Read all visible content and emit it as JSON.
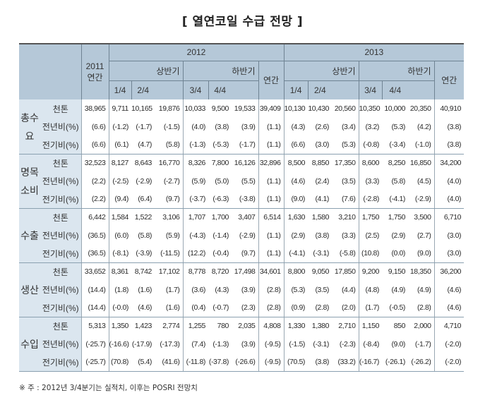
{
  "title": "[ 열연코일 수급 전망 ]",
  "header": {
    "y2011_line1": "2011",
    "y2011_line2": "연간",
    "year2012": "2012",
    "year2013": "2013",
    "h1": "상반기",
    "h2": "하반기",
    "annual": "연간",
    "q1": "1/4",
    "q2": "2/4",
    "q3": "3/4",
    "q4": "4/4"
  },
  "categories": [
    {
      "name": "총수요",
      "rows": [
        {
          "label": "천톤",
          "values": [
            "38,965",
            "9,711",
            "10,165",
            "19,876",
            "10,033",
            "9,500",
            "19,533",
            "39,409",
            "10,130",
            "10,430",
            "20,560",
            "10,350",
            "10,000",
            "20,350",
            "40,910"
          ]
        },
        {
          "label": "전년비(%)",
          "values": [
            "(6.6)",
            "(-1.2)",
            "(-1.7)",
            "(-1.5)",
            "(4.0)",
            "(3.8)",
            "(3.9)",
            "(1.1)",
            "(4.3)",
            "(2.6)",
            "(3.4)",
            "(3.2)",
            "(5.3)",
            "(4.2)",
            "(3.8)"
          ]
        },
        {
          "label": "전기비(%)",
          "values": [
            "(6.6)",
            "(6.1)",
            "(4.7)",
            "(5.8)",
            "(-1.3)",
            "(-5.3)",
            "(-1.7)",
            "(1.1)",
            "(6.6)",
            "(3.0)",
            "(5.3)",
            "(-0.8)",
            "(-3.4)",
            "(-1.0)",
            "(3.8)"
          ]
        }
      ]
    },
    {
      "name": "명목소비",
      "rows": [
        {
          "label": "천톤",
          "values": [
            "32,523",
            "8,127",
            "8,643",
            "16,770",
            "8,326",
            "7,800",
            "16,126",
            "32,896",
            "8,500",
            "8,850",
            "17,350",
            "8,600",
            "8,250",
            "16,850",
            "34,200"
          ]
        },
        {
          "label": "전년비(%)",
          "values": [
            "(2.2)",
            "(-2.5)",
            "(-2.9)",
            "(-2.7)",
            "(5.9)",
            "(5.0)",
            "(5.5)",
            "(1.1)",
            "(4.6)",
            "(2.4)",
            "(3.5)",
            "(3.3)",
            "(5.8)",
            "(4.5)",
            "(4.0)"
          ]
        },
        {
          "label": "전기비(%)",
          "values": [
            "(2.2)",
            "(9.4)",
            "(6.4)",
            "(9.7)",
            "(-3.7)",
            "(-6.3)",
            "(-3.8)",
            "(1.1)",
            "(9.0)",
            "(4.1)",
            "(7.6)",
            "(-2.8)",
            "(-4.1)",
            "(-2.9)",
            "(4.0)"
          ]
        }
      ]
    },
    {
      "name": "수출",
      "rows": [
        {
          "label": "천톤",
          "values": [
            "6,442",
            "1,584",
            "1,522",
            "3,106",
            "1,707",
            "1,700",
            "3,407",
            "6,514",
            "1,630",
            "1,580",
            "3,210",
            "1,750",
            "1,750",
            "3,500",
            "6,710"
          ]
        },
        {
          "label": "전년비(%)",
          "values": [
            "(36.5)",
            "(6.0)",
            "(5.8)",
            "(5.9)",
            "(-4.3)",
            "(-1.4)",
            "(-2.9)",
            "(1.1)",
            "(2.9)",
            "(3.8)",
            "(3.3)",
            "(2.5)",
            "(2.9)",
            "(2.7)",
            "(3.0)"
          ]
        },
        {
          "label": "전기비(%)",
          "values": [
            "(36.5)",
            "(-8.1)",
            "(-3.9)",
            "(-11.5)",
            "(12.2)",
            "(-0.4)",
            "(9.7)",
            "(1.1)",
            "(-4.1)",
            "(-3.1)",
            "(-5.8)",
            "(10.8)",
            "(0.0)",
            "(9.0)",
            "(3.0)"
          ]
        }
      ]
    },
    {
      "name": "생산",
      "rows": [
        {
          "label": "천톤",
          "values": [
            "33,652",
            "8,361",
            "8,742",
            "17,102",
            "8,778",
            "8,720",
            "17,498",
            "34,601",
            "8,800",
            "9,050",
            "17,850",
            "9,200",
            "9,150",
            "18,350",
            "36,200"
          ]
        },
        {
          "label": "전년비(%)",
          "values": [
            "(14.4)",
            "(1.8)",
            "(1.6)",
            "(1.7)",
            "(3.6)",
            "(4.3)",
            "(3.9)",
            "(2.8)",
            "(5.3)",
            "(3.5)",
            "(4.4)",
            "(4.8)",
            "(4.9)",
            "(4.9)",
            "(4.6)"
          ]
        },
        {
          "label": "전기비(%)",
          "values": [
            "(14.4)",
            "(-0.0)",
            "(4.6)",
            "(1.6)",
            "(0.4)",
            "(-0.7)",
            "(2.3)",
            "(2.8)",
            "(0.9)",
            "(2.8)",
            "(2.0)",
            "(1.7)",
            "(-0.5)",
            "(2.8)",
            "(4.6)"
          ]
        }
      ]
    },
    {
      "name": "수입",
      "rows": [
        {
          "label": "천톤",
          "values": [
            "5,313",
            "1,350",
            "1,423",
            "2,774",
            "1,255",
            "780",
            "2,035",
            "4,808",
            "1,330",
            "1,380",
            "2,710",
            "1,150",
            "850",
            "2,000",
            "4,710"
          ]
        },
        {
          "label": "전년비(%)",
          "values": [
            "(-25.7)",
            "(-16.6)",
            "(-17.9)",
            "(-17.3)",
            "(7.4)",
            "(-1.3)",
            "(3.9)",
            "(-9.5)",
            "(-1.5)",
            "(-3.1)",
            "(-2.3)",
            "(-8.4)",
            "(9.0)",
            "(-1.7)",
            "(-2.0)"
          ]
        },
        {
          "label": "전기비(%)",
          "values": [
            "(-25.7)",
            "(70.8)",
            "(5.4)",
            "(41.6)",
            "(-11.8)",
            "(-37.8)",
            "(-26.6)",
            "(-9.5)",
            "(70.5)",
            "(3.8)",
            "(33.2)",
            "(-16.7)",
            "(-26.1)",
            "(-26.2)",
            "(-2.0)"
          ]
        }
      ]
    }
  ],
  "note": "※ 주 : 2012년 3/4분기는 실적치, 이후는 POSRI 전망치",
  "colors": {
    "header_bg": "#b5c8d8",
    "label_bg": "#dbe6ef"
  }
}
